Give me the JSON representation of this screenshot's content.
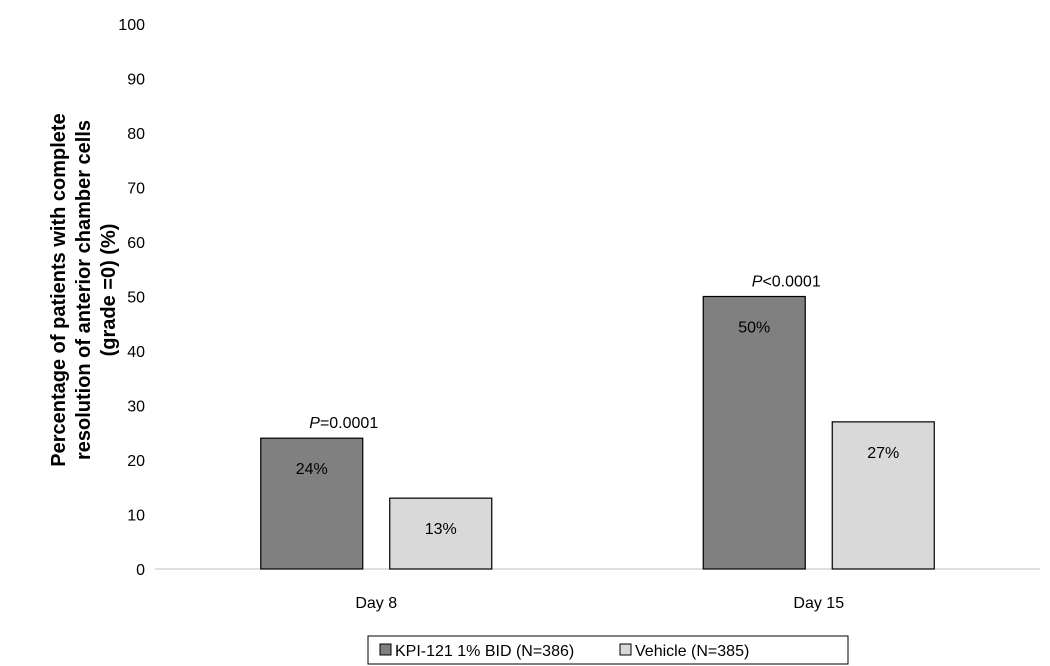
{
  "chart_data": {
    "type": "bar",
    "title": "",
    "ylabel_lines": [
      "Percentage of patients with complete",
      "resolution of anterior chamber cells",
      "(grade =0) (%)"
    ],
    "xlabel": "",
    "categories": [
      "Day 8",
      "Day 15"
    ],
    "ylim": [
      0,
      100
    ],
    "yticks": [
      0,
      10,
      20,
      30,
      40,
      50,
      60,
      70,
      80,
      90,
      100
    ],
    "grid": false,
    "legend": "bottom",
    "series": [
      {
        "name": "KPI-121 1% BID (N=386)",
        "values": [
          24,
          50
        ],
        "labels": [
          "24%",
          "50%"
        ],
        "color": "#808080"
      },
      {
        "name": "Vehicle (N=385)",
        "values": [
          13,
          27
        ],
        "labels": [
          "13%",
          "27%"
        ],
        "color": "#d9d9d9"
      }
    ],
    "annotations": [
      {
        "category": "Day 8",
        "italic": "P",
        "text": "=0.0001"
      },
      {
        "category": "Day 15",
        "italic": "P",
        "text": "<0.0001"
      }
    ]
  }
}
